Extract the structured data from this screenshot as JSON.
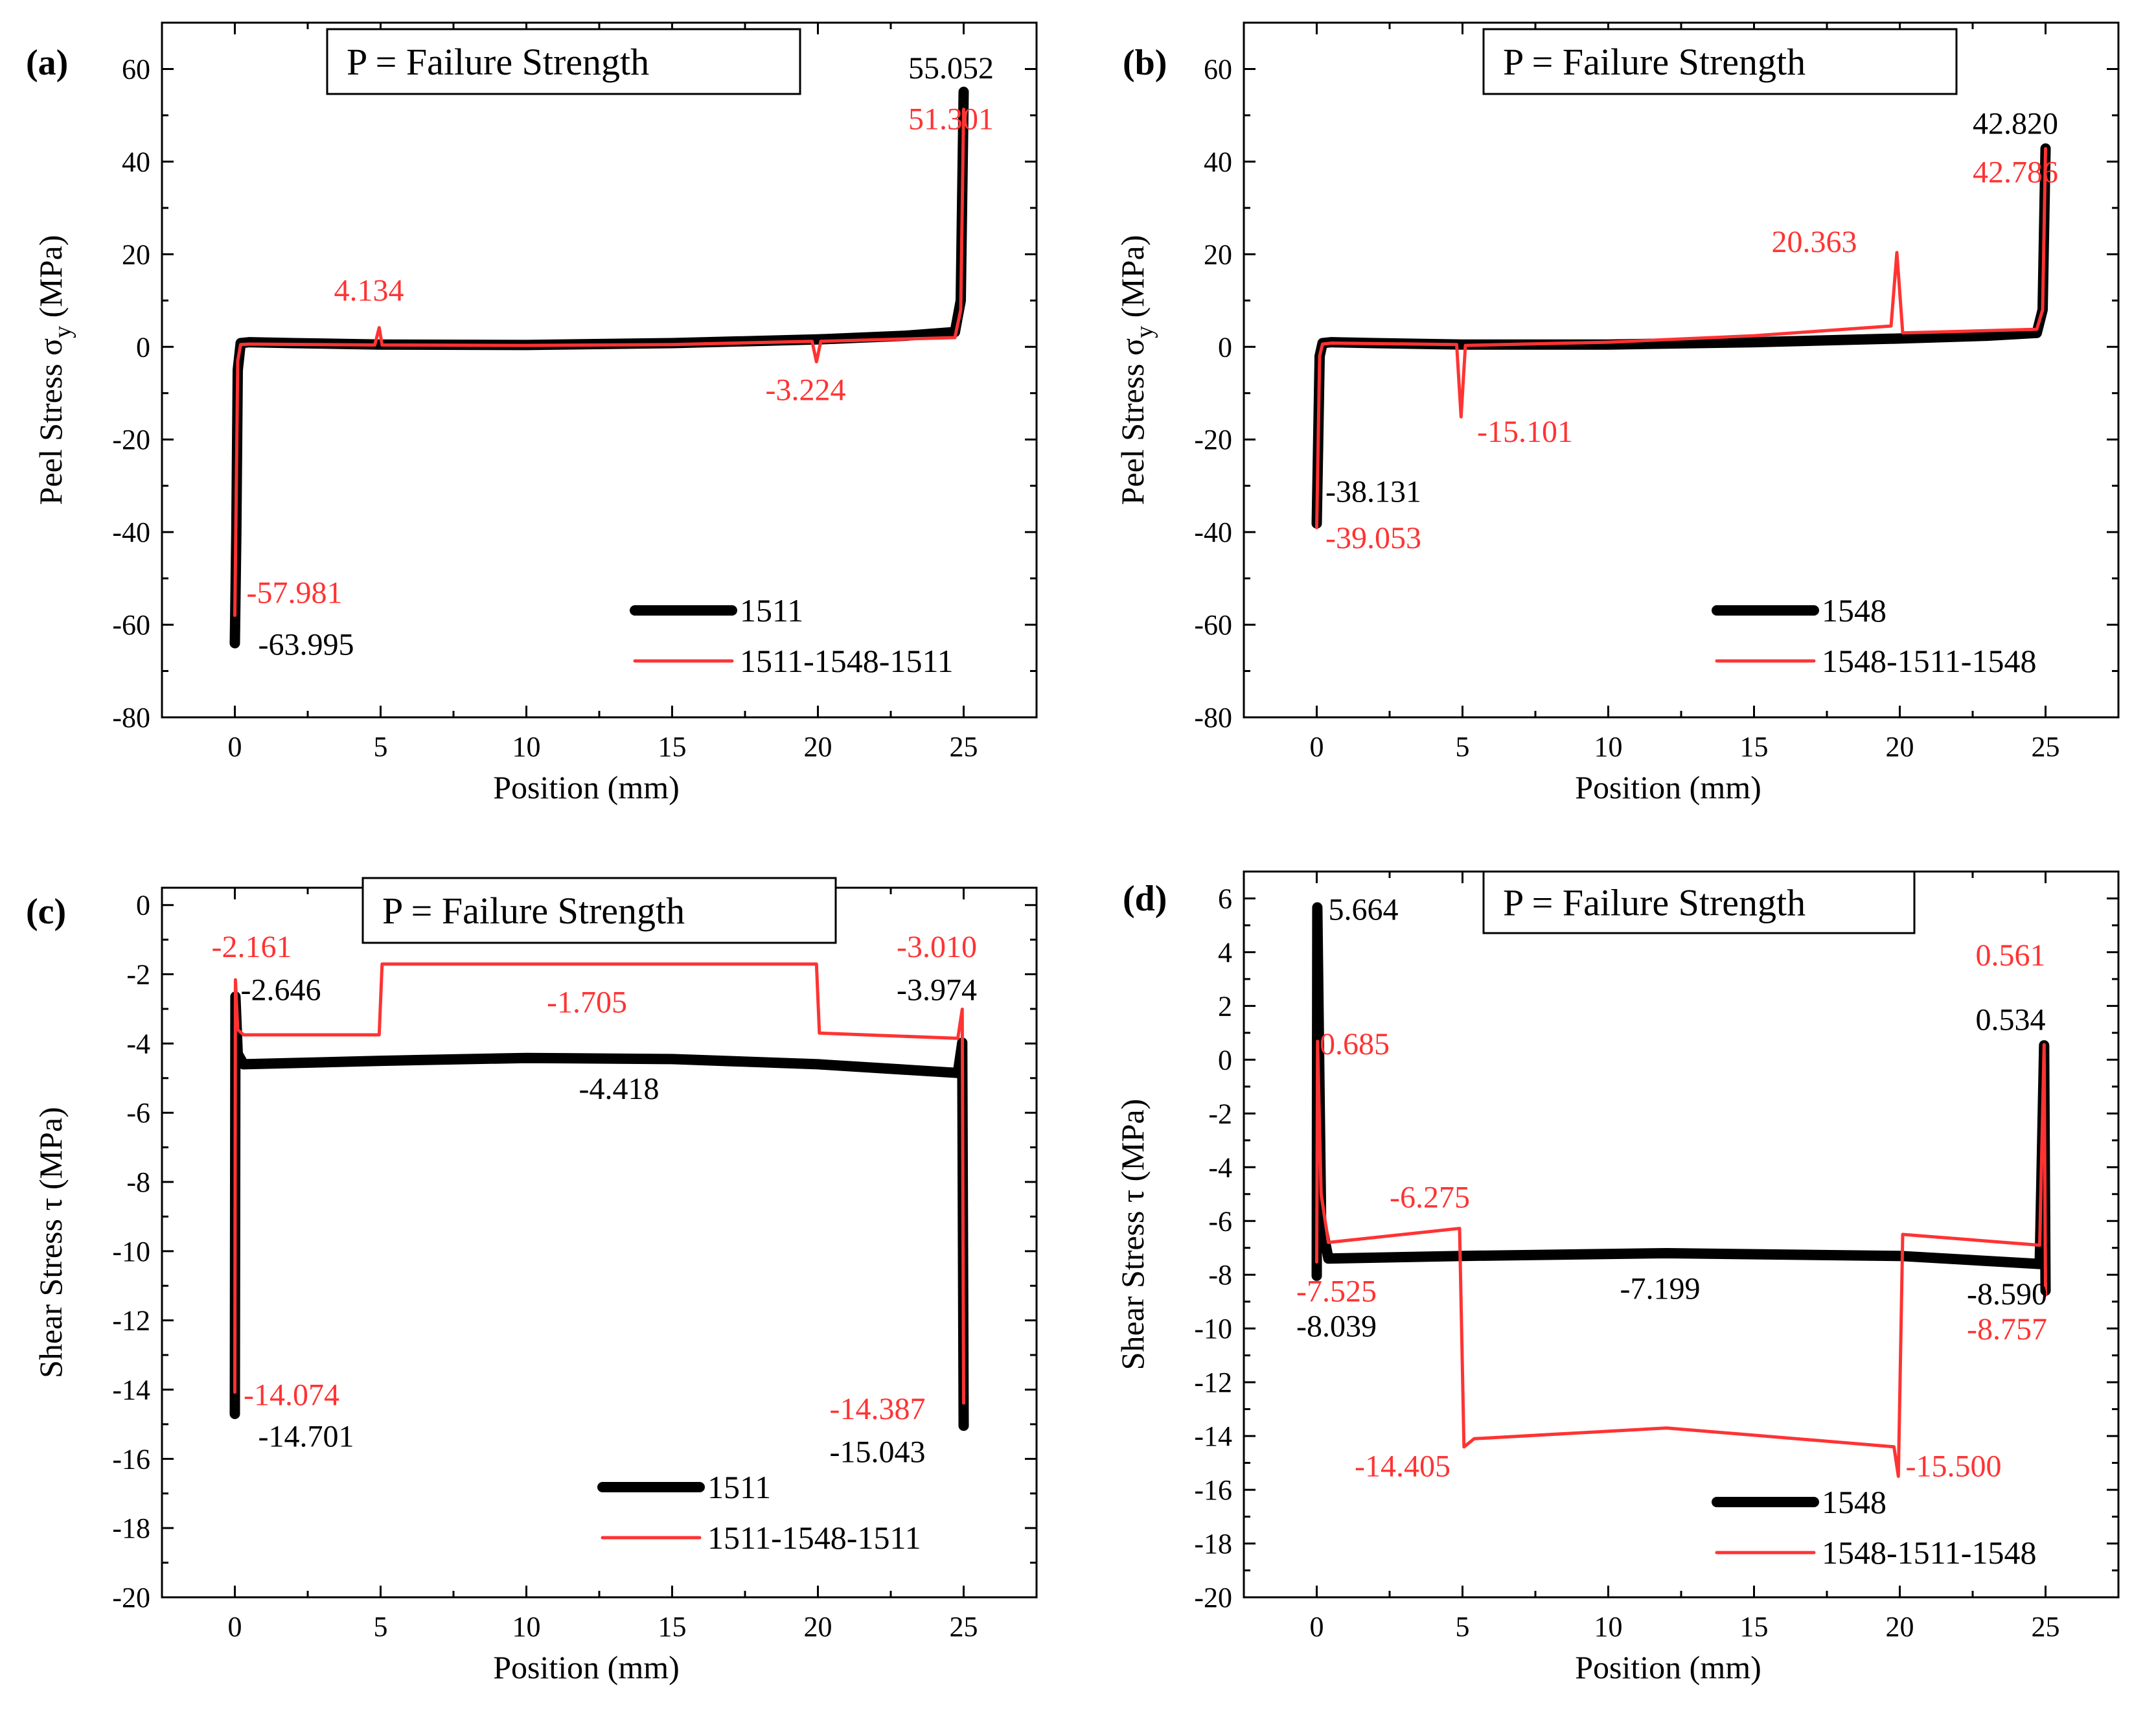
{
  "chart_data": [
    {
      "id": "a",
      "type": "line",
      "panel_label": "(a)",
      "title": "P = Failure Strength",
      "xlabel": "Position (mm)",
      "ylabel_main": "Peel Stress  σ",
      "ylabel_sub": "y",
      "ylabel_unit": " (MPa)",
      "xlim": [
        -2.5,
        27.5
      ],
      "ylim": [
        -80,
        70
      ],
      "xticks": [
        0,
        5,
        10,
        15,
        20,
        25
      ],
      "yticks": [
        -80,
        -60,
        -40,
        -20,
        0,
        20,
        40,
        60
      ],
      "legend_position": "bottom-right",
      "series": [
        {
          "name": "1511",
          "color": "#000000",
          "style": "thick",
          "points": [
            [
              0,
              -63.995
            ],
            [
              0.05,
              -40
            ],
            [
              0.1,
              -5
            ],
            [
              0.2,
              0.8
            ],
            [
              0.5,
              1
            ],
            [
              2,
              0.8
            ],
            [
              5,
              0.5
            ],
            [
              10,
              0.4
            ],
            [
              15,
              0.8
            ],
            [
              20,
              1.6
            ],
            [
              23,
              2.4
            ],
            [
              24.7,
              3.2
            ],
            [
              24.9,
              10
            ],
            [
              25,
              55.052
            ]
          ]
        },
        {
          "name": "1511-1548-1511",
          "color": "#ff3333",
          "style": "thin",
          "points": [
            [
              0,
              -57.981
            ],
            [
              0.05,
              -30
            ],
            [
              0.1,
              -3
            ],
            [
              0.2,
              0.5
            ],
            [
              0.5,
              0.6
            ],
            [
              4.8,
              0.4
            ],
            [
              4.95,
              4.134
            ],
            [
              5.05,
              0.4
            ],
            [
              10,
              0.3
            ],
            [
              15,
              0.5
            ],
            [
              19.8,
              1.2
            ],
            [
              19.95,
              -3.224
            ],
            [
              20.1,
              1.2
            ],
            [
              24.7,
              2
            ],
            [
              24.9,
              8
            ],
            [
              25,
              51.301
            ]
          ]
        }
      ],
      "annotations": [
        {
          "text": "55.052",
          "x": 23.1,
          "y": 58,
          "color": "#000000"
        },
        {
          "text": "51.301",
          "x": 23.1,
          "y": 47,
          "color": "#ff3333"
        },
        {
          "text": "4.134",
          "x": 3.4,
          "y": 10,
          "color": "#ff3333"
        },
        {
          "text": "-3.224",
          "x": 18.2,
          "y": -11.5,
          "color": "#ff3333"
        },
        {
          "text": "-57.981",
          "x": 0.4,
          "y": -55.3,
          "color": "#ff3333"
        },
        {
          "text": "-63.995",
          "x": 0.8,
          "y": -66.5,
          "color": "#000000"
        }
      ]
    },
    {
      "id": "b",
      "type": "line",
      "panel_label": "(b)",
      "title": "P = Failure Strength",
      "xlabel": "Position (mm)",
      "ylabel_main": "Peel Stress  σ",
      "ylabel_sub": "y",
      "ylabel_unit": " (MPa)",
      "xlim": [
        -2.5,
        27.5
      ],
      "ylim": [
        -80,
        70
      ],
      "xticks": [
        0,
        5,
        10,
        15,
        20,
        25
      ],
      "yticks": [
        -80,
        -60,
        -40,
        -20,
        0,
        20,
        40,
        60
      ],
      "legend_position": "bottom-right",
      "series": [
        {
          "name": "1548",
          "color": "#000000",
          "style": "thick",
          "points": [
            [
              0,
              -38.131
            ],
            [
              0.05,
              -20
            ],
            [
              0.1,
              -2
            ],
            [
              0.2,
              0.8
            ],
            [
              0.5,
              1
            ],
            [
              2,
              0.8
            ],
            [
              5,
              0.5
            ],
            [
              10,
              0.5
            ],
            [
              15,
              1
            ],
            [
              20,
              1.8
            ],
            [
              23,
              2.4
            ],
            [
              24.7,
              3
            ],
            [
              24.9,
              8
            ],
            [
              25,
              42.82
            ]
          ]
        },
        {
          "name": "1548-1511-1548",
          "color": "#ff3333",
          "style": "thin",
          "points": [
            [
              0,
              -39.053
            ],
            [
              0.05,
              -20
            ],
            [
              0.1,
              -2
            ],
            [
              0.2,
              0.6
            ],
            [
              0.5,
              0.8
            ],
            [
              4.8,
              0.5
            ],
            [
              4.95,
              -15.101
            ],
            [
              5.1,
              0.3
            ],
            [
              10,
              1
            ],
            [
              15,
              2.4
            ],
            [
              19.7,
              4.5
            ],
            [
              19.9,
              20.363
            ],
            [
              20.1,
              3
            ],
            [
              24.7,
              3.8
            ],
            [
              24.9,
              8
            ],
            [
              25,
              42.786
            ]
          ]
        }
      ],
      "annotations": [
        {
          "text": "42.820",
          "x": 22.5,
          "y": 46,
          "color": "#000000"
        },
        {
          "text": "42.786",
          "x": 22.5,
          "y": 35.5,
          "color": "#ff3333"
        },
        {
          "text": "20.363",
          "x": 15.6,
          "y": 20.5,
          "color": "#ff3333"
        },
        {
          "text": "-15.101",
          "x": 5.5,
          "y": -20.5,
          "color": "#ff3333"
        },
        {
          "text": "-38.131",
          "x": 0.3,
          "y": -33.5,
          "color": "#000000"
        },
        {
          "text": "-39.053",
          "x": 0.3,
          "y": -43.5,
          "color": "#ff3333"
        }
      ]
    },
    {
      "id": "c",
      "type": "line",
      "panel_label": "(c)",
      "title": "P = Failure Strength",
      "xlabel": "Position (mm)",
      "ylabel_main": "Shear Stress  τ",
      "ylabel_sub": "",
      "ylabel_unit": " (MPa)",
      "xlim": [
        -2.5,
        27.5
      ],
      "ylim": [
        -20,
        0.5
      ],
      "xticks": [
        0,
        5,
        10,
        15,
        20,
        25
      ],
      "yticks": [
        -20,
        -18,
        -16,
        -14,
        -12,
        -10,
        -8,
        -6,
        -4,
        -2,
        0
      ],
      "legend_position": "bottom-right",
      "series": [
        {
          "name": "1511",
          "color": "#000000",
          "style": "thick",
          "points": [
            [
              0,
              -14.701
            ],
            [
              0.02,
              -2.646
            ],
            [
              0.1,
              -4.3
            ],
            [
              0.3,
              -4.6
            ],
            [
              5,
              -4.5
            ],
            [
              10,
              -4.418
            ],
            [
              15,
              -4.45
            ],
            [
              20,
              -4.6
            ],
            [
              24.8,
              -4.85
            ],
            [
              24.95,
              -3.974
            ],
            [
              25,
              -15.043
            ]
          ]
        },
        {
          "name": "1511-1548-1511",
          "color": "#ff3333",
          "style": "thin",
          "points": [
            [
              0,
              -14.074
            ],
            [
              0.02,
              -2.161
            ],
            [
              0.1,
              -3.6
            ],
            [
              0.3,
              -3.75
            ],
            [
              4.95,
              -3.75
            ],
            [
              5.05,
              -1.705
            ],
            [
              12,
              -1.705
            ],
            [
              19.95,
              -1.705
            ],
            [
              20.05,
              -3.7
            ],
            [
              24.8,
              -3.85
            ],
            [
              24.95,
              -3.01
            ],
            [
              25,
              -14.387
            ]
          ]
        }
      ],
      "annotations": [
        {
          "text": "-2.161",
          "x": -0.8,
          "y": -1.5,
          "color": "#ff3333"
        },
        {
          "text": "-2.646",
          "x": 0.2,
          "y": -2.75,
          "color": "#000000"
        },
        {
          "text": "-1.705",
          "x": 10.7,
          "y": -3.1,
          "color": "#ff3333"
        },
        {
          "text": "-3.010",
          "x": 22.7,
          "y": -1.5,
          "color": "#ff3333"
        },
        {
          "text": "-3.974",
          "x": 22.7,
          "y": -2.75,
          "color": "#000000"
        },
        {
          "text": "-4.418",
          "x": 11.8,
          "y": -5.6,
          "color": "#000000"
        },
        {
          "text": "-14.074",
          "x": 0.3,
          "y": -14.45,
          "color": "#ff3333"
        },
        {
          "text": "-14.701",
          "x": 0.8,
          "y": -15.65,
          "color": "#000000"
        },
        {
          "text": "-14.387",
          "x": 20.4,
          "y": -14.85,
          "color": "#ff3333"
        },
        {
          "text": "-15.043",
          "x": 20.4,
          "y": -16.1,
          "color": "#000000"
        }
      ]
    },
    {
      "id": "d",
      "type": "line",
      "panel_label": "(d)",
      "title": "P = Failure Strength",
      "xlabel": "Position (mm)",
      "ylabel_main": "Shear Stress  τ",
      "ylabel_sub": "",
      "ylabel_unit": " (MPa)",
      "xlim": [
        -2.5,
        27.5
      ],
      "ylim": [
        -20,
        7
      ],
      "xticks": [
        0,
        5,
        10,
        15,
        20,
        25
      ],
      "yticks": [
        -20,
        -18,
        -16,
        -14,
        -12,
        -10,
        -8,
        -6,
        -4,
        -2,
        0,
        2,
        4,
        6
      ],
      "legend_position": "bottom-right",
      "series": [
        {
          "name": "1548",
          "color": "#000000",
          "style": "thick",
          "points": [
            [
              0,
              -8.039
            ],
            [
              0.02,
              5.664
            ],
            [
              0.15,
              -6
            ],
            [
              0.4,
              -7.4
            ],
            [
              5,
              -7.3
            ],
            [
              12,
              -7.199
            ],
            [
              20,
              -7.3
            ],
            [
              24.8,
              -7.6
            ],
            [
              24.95,
              0.534
            ],
            [
              25,
              -8.59
            ]
          ]
        },
        {
          "name": "1548-1511-1548",
          "color": "#ff3333",
          "style": "thin",
          "points": [
            [
              0,
              -7.525
            ],
            [
              0.03,
              0.685
            ],
            [
              0.15,
              -5
            ],
            [
              0.4,
              -6.8
            ],
            [
              4.9,
              -6.275
            ],
            [
              5.05,
              -14.405
            ],
            [
              5.4,
              -14.1
            ],
            [
              12,
              -13.7
            ],
            [
              19.8,
              -14.4
            ],
            [
              19.95,
              -15.5
            ],
            [
              20.1,
              -6.5
            ],
            [
              24.8,
              -6.9
            ],
            [
              24.95,
              0.561
            ],
            [
              25,
              -8.757
            ]
          ]
        }
      ],
      "annotations": [
        {
          "text": "5.664",
          "x": 0.4,
          "y": 5.2,
          "color": "#000000"
        },
        {
          "text": "0.685",
          "x": 0.1,
          "y": 0.2,
          "color": "#ff3333"
        },
        {
          "text": "-6.275",
          "x": 2.5,
          "y": -5.5,
          "color": "#ff3333"
        },
        {
          "text": "-7.199",
          "x": 10.4,
          "y": -8.9,
          "color": "#000000"
        },
        {
          "text": "-7.525",
          "x": -0.7,
          "y": -9.0,
          "color": "#ff3333"
        },
        {
          "text": "-8.039",
          "x": -0.7,
          "y": -10.3,
          "color": "#000000"
        },
        {
          "text": "0.561",
          "x": 22.6,
          "y": 3.5,
          "color": "#ff3333"
        },
        {
          "text": "0.534",
          "x": 22.6,
          "y": 1.1,
          "color": "#000000"
        },
        {
          "text": "-8.590",
          "x": 22.3,
          "y": -9.1,
          "color": "#000000"
        },
        {
          "text": "-8.757",
          "x": 22.3,
          "y": -10.4,
          "color": "#ff3333"
        },
        {
          "text": "-14.405",
          "x": 1.3,
          "y": -15.5,
          "color": "#ff3333"
        },
        {
          "text": "-15.500",
          "x": 20.2,
          "y": -15.5,
          "color": "#ff3333"
        }
      ]
    }
  ]
}
